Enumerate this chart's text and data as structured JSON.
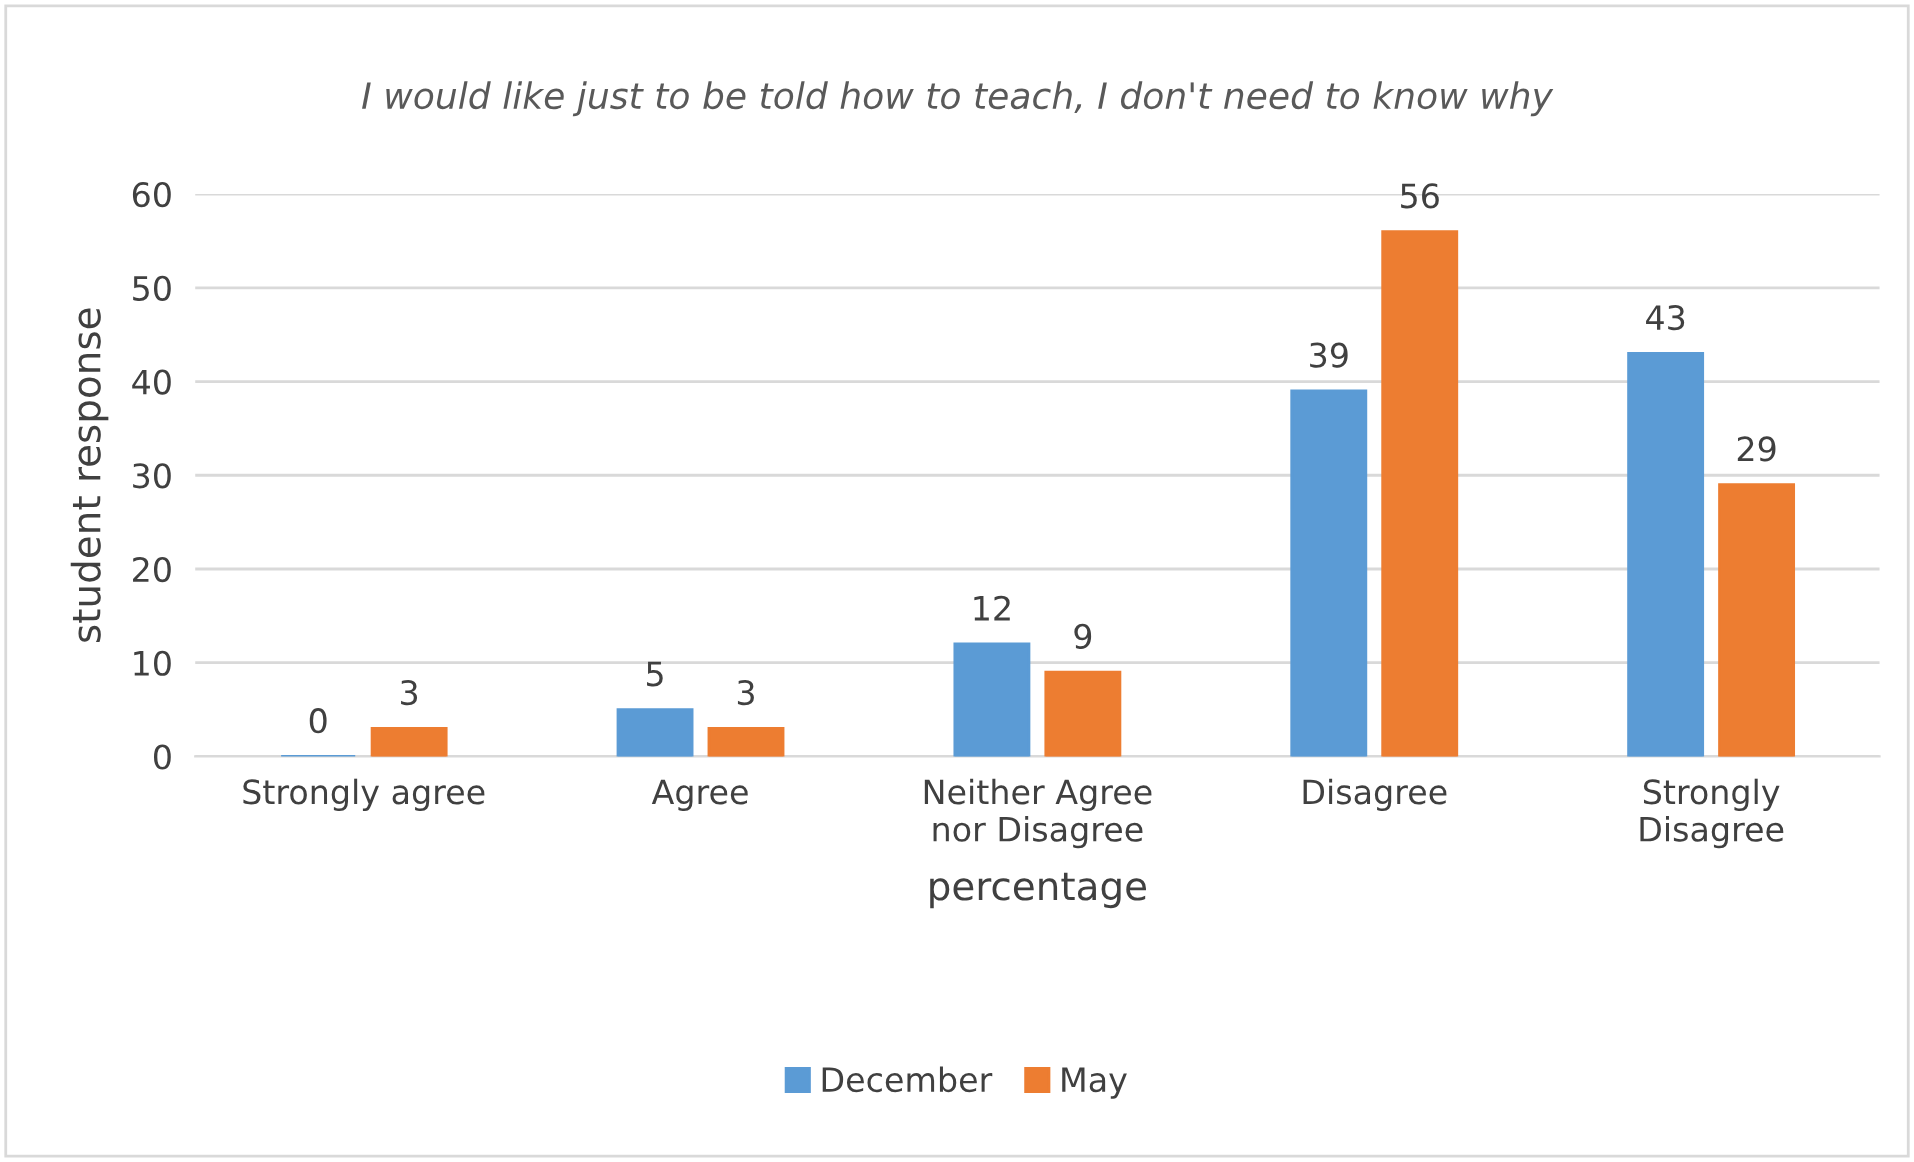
{
  "chart_data": {
    "type": "bar",
    "title": "I would like just to be told how to teach, I don't need to know why",
    "xlabel": "percentage",
    "ylabel": "student response",
    "categories": [
      "Strongly agree",
      "Agree",
      "Neither Agree nor Disagree",
      "Disagree",
      "Strongly Disagree"
    ],
    "series": [
      {
        "name": "December",
        "color": "#5b9bd5",
        "values": [
          0,
          5,
          12,
          39,
          43
        ]
      },
      {
        "name": "May",
        "color": "#ed7d31",
        "values": [
          3,
          3,
          9,
          56,
          29
        ]
      }
    ],
    "ylim": [
      0,
      60
    ],
    "yticks": [
      0,
      10,
      20,
      30,
      40,
      50,
      60
    ],
    "grid": "y",
    "legend": "bottom",
    "data_labels": true
  }
}
